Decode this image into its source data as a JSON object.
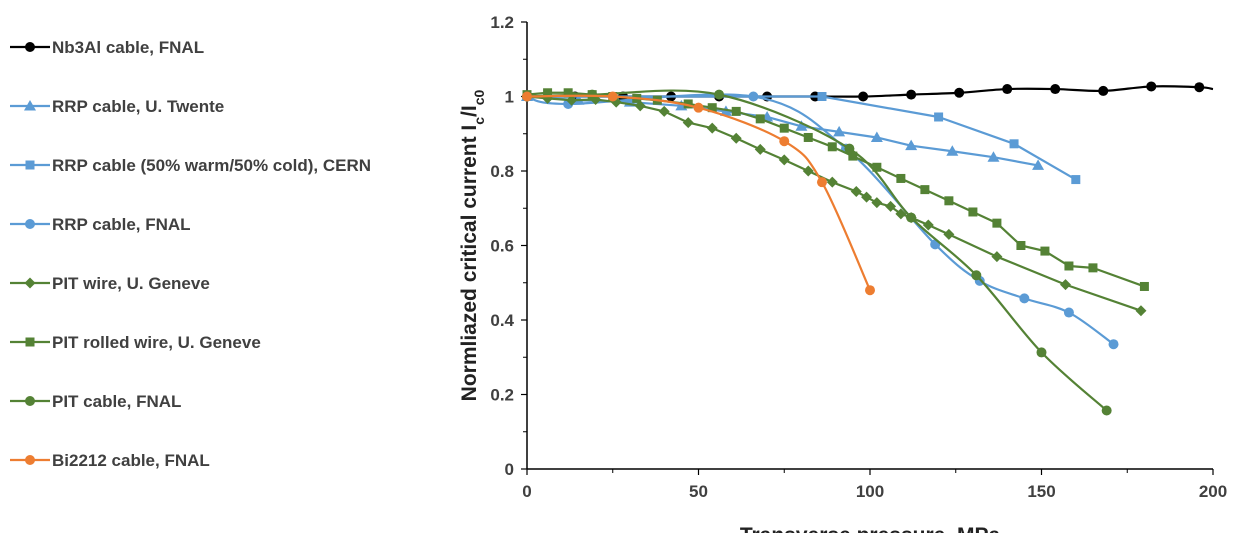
{
  "chart_data": {
    "type": "line",
    "title": "",
    "xlabel": "Transverse pressure, MPa",
    "ylabel": {
      "main": "Normliazed critical current I",
      "sub1": "c",
      "slash": "/I",
      "sub2": "c0"
    },
    "xlim": [
      0,
      200
    ],
    "ylim": [
      0,
      1.2
    ],
    "xticks": [
      0,
      50,
      100,
      150,
      200
    ],
    "xtick_labels": [
      "0",
      "50",
      "100",
      "150",
      "200"
    ],
    "yticks": [
      0,
      0.2,
      0.4,
      0.6,
      0.8,
      1,
      1.2
    ],
    "ytick_labels": [
      "0",
      "0.2",
      "0.4",
      "0.6",
      "0.8",
      "1",
      "1.2"
    ],
    "grid": false,
    "legend_position": "left",
    "series": [
      {
        "name": "Nb3Al cable, FNAL",
        "color": "#000000",
        "marker": "circle",
        "smooth": true,
        "x": [
          0,
          14,
          28,
          42,
          56,
          70,
          84,
          98,
          112,
          126,
          140,
          154,
          168,
          182,
          196,
          200
        ],
        "y": [
          1.0,
          1.0,
          1.0,
          1.0,
          1.0,
          1.0,
          1.0,
          1.0,
          1.005,
          1.01,
          1.02,
          1.02,
          1.015,
          1.027,
          1.025,
          1.02
        ],
        "marked": [
          true,
          true,
          true,
          true,
          true,
          true,
          true,
          true,
          true,
          true,
          true,
          true,
          true,
          true,
          true,
          false
        ]
      },
      {
        "name": "RRP cable, U. Twente",
        "color": "#5b9bd5",
        "marker": "triangle",
        "smooth": false,
        "x": [
          0,
          15,
          30,
          45,
          58,
          70,
          80,
          91,
          102,
          112,
          124,
          136,
          149
        ],
        "y": [
          1.0,
          0.99,
          0.985,
          0.975,
          0.96,
          0.945,
          0.92,
          0.905,
          0.89,
          0.868,
          0.853,
          0.837,
          0.815
        ]
      },
      {
        "name": "RRP cable (50% warm/50% cold), CERN",
        "color": "#5b9bd5",
        "marker": "square",
        "smooth": false,
        "x": [
          0,
          86,
          120,
          142,
          160
        ],
        "y": [
          1.0,
          1.0,
          0.945,
          0.873,
          0.777
        ]
      },
      {
        "name": "RRP cable, FNAL",
        "color": "#5b9bd5",
        "marker": "circle",
        "smooth": true,
        "x": [
          0,
          12,
          66,
          93,
          119,
          132,
          145,
          158,
          171
        ],
        "y": [
          1.0,
          0.98,
          1.0,
          0.86,
          0.603,
          0.505,
          0.458,
          0.42,
          0.335
        ]
      },
      {
        "name": "PIT wire, U. Geneve",
        "color": "#548235",
        "marker": "diamond",
        "smooth": false,
        "x": [
          0,
          6,
          13,
          20,
          26,
          33,
          40,
          47,
          54,
          61,
          68,
          75,
          82,
          89,
          96,
          99,
          102,
          106,
          109,
          112,
          117,
          123,
          137,
          157,
          179
        ],
        "y": [
          1.0,
          0.995,
          0.99,
          0.992,
          0.985,
          0.975,
          0.96,
          0.93,
          0.915,
          0.888,
          0.858,
          0.83,
          0.8,
          0.77,
          0.745,
          0.73,
          0.715,
          0.705,
          0.685,
          0.675,
          0.655,
          0.63,
          0.57,
          0.495,
          0.425
        ]
      },
      {
        "name": "PIT rolled wire, U. Geneve",
        "color": "#548235",
        "marker": "square",
        "smooth": false,
        "x": [
          0,
          6,
          12,
          19,
          25,
          32,
          38,
          47,
          54,
          61,
          68,
          75,
          82,
          89,
          95,
          102,
          109,
          116,
          123,
          130,
          137,
          144,
          151,
          158,
          165,
          180
        ],
        "y": [
          1.005,
          1.01,
          1.01,
          1.005,
          1.0,
          0.995,
          0.99,
          0.98,
          0.97,
          0.96,
          0.94,
          0.915,
          0.89,
          0.865,
          0.84,
          0.81,
          0.78,
          0.75,
          0.72,
          0.69,
          0.66,
          0.6,
          0.585,
          0.545,
          0.54,
          0.49
        ]
      },
      {
        "name": "PIT cable, FNAL",
        "color": "#548235",
        "marker": "circle",
        "smooth": true,
        "x": [
          0,
          19,
          56,
          94,
          112,
          131,
          150,
          169
        ],
        "y": [
          1.0,
          1.005,
          1.005,
          0.86,
          0.675,
          0.52,
          0.313,
          0.157
        ]
      },
      {
        "name": "Bi2212 cable, FNAL",
        "color": "#ed7d31",
        "marker": "circle",
        "smooth": true,
        "x": [
          0,
          25,
          50,
          75,
          86,
          100
        ],
        "y": [
          1.0,
          1.0,
          0.97,
          0.88,
          0.77,
          0.48
        ]
      }
    ]
  }
}
